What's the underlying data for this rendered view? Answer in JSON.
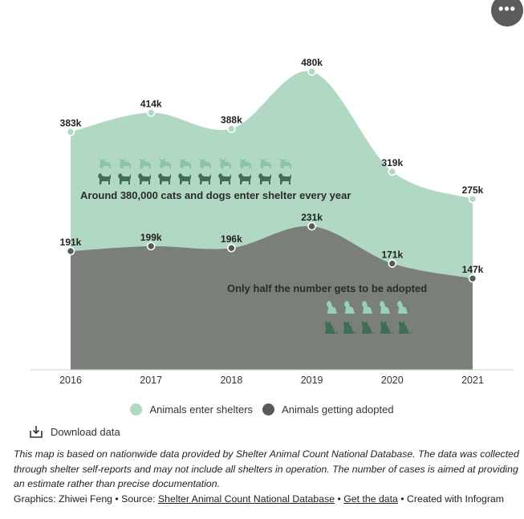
{
  "chart_data": {
    "type": "area",
    "categories": [
      "2016",
      "2017",
      "2018",
      "2019",
      "2020",
      "2021"
    ],
    "series": [
      {
        "name": "Animals enter shelters",
        "values": [
          383,
          414,
          388,
          480,
          319,
          275
        ],
        "labels": [
          "383k",
          "414k",
          "388k",
          "480k",
          "319k",
          "275k"
        ],
        "color": "#b1d8c2"
      },
      {
        "name": "Animals getting adopted",
        "values": [
          191,
          199,
          196,
          231,
          171,
          147
        ],
        "labels": [
          "191k",
          "199k",
          "196k",
          "231k",
          "171k",
          "147k"
        ],
        "color": "#7a7f79"
      }
    ],
    "ylim": [
      0,
      500
    ],
    "grid": false,
    "legend_position": "bottom",
    "annotations": [
      "Around 380,000 cats and dogs enter shelter every year",
      "Only half the number gets to be adopted"
    ]
  },
  "legend": {
    "enter_label": "Animals enter shelters",
    "adopted_label": "Animals getting adopted"
  },
  "colors": {
    "enter": "#b1d8c2",
    "adopted": "#7a7f79",
    "dark_marker": "#575b57",
    "cat_icon_light": "#8cc4a5",
    "dog_icon_dark": "#3f6e55",
    "cat_icon_dark": "#3f6e55",
    "cat_icon_mint": "#98d2b2"
  },
  "icons": {
    "menu": "ellipsis-icon",
    "download": "download-icon",
    "pictogram_top_row": "cat-icon",
    "pictogram_second_row": "dog-icon",
    "pictogram_adopted_top": "sitting-dog-icon",
    "pictogram_adopted_bottom": "sitting-cat-icon"
  },
  "pictograms": {
    "enter_cats": 10,
    "enter_dogs": 10,
    "adopted_dogs": 5,
    "adopted_cats": 5
  },
  "menu_label": "•••",
  "download_label": "Download data",
  "footnote": {
    "note": "This map is based on nationwide data provided by Shelter Animal Count National Database. The data was collected through shelter self-reports and may not include all shelters in operation. The number of cases is aimed at providing an estimate rather than precise documentation.",
    "graphics_label": "Graphics: Zhiwei Feng • Source: ",
    "source_link": "Shelter Animal Count National Database",
    "sep": " • ",
    "data_link": "Get the data",
    "created": " • Created with Infogram"
  }
}
